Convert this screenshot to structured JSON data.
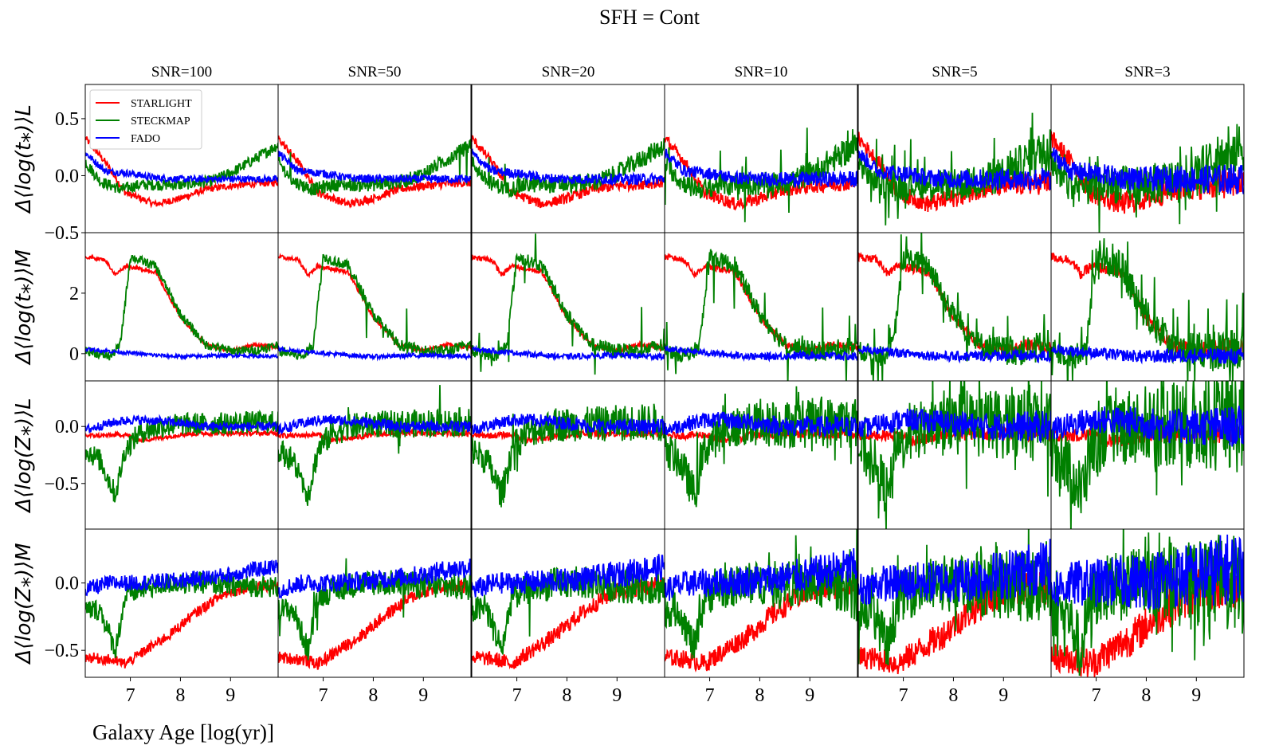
{
  "figure": {
    "title": "SFH = Cont",
    "xlabel": "Galaxy Age [log(yr)]"
  },
  "legend": {
    "items": [
      {
        "label": "STARLIGHT",
        "color": "#ff0000"
      },
      {
        "label": "STECKMAP",
        "color": "#008000"
      },
      {
        "label": "FADO",
        "color": "#0000ff"
      }
    ]
  },
  "chart_data": {
    "type": "line",
    "layout": "grid 4 rows x 6 columns, shared axes",
    "columns": [
      "SNR=100",
      "SNR=50",
      "SNR=20",
      "SNR=10",
      "SNR=5",
      "SNR=3"
    ],
    "noise_level": [
      0.0,
      0.2,
      0.5,
      1.0,
      1.8,
      2.6
    ],
    "xlim": [
      6.1,
      9.95
    ],
    "xticks": [
      7,
      8,
      9
    ],
    "xtick_labels": [
      "7",
      "8",
      "9"
    ],
    "rows": [
      {
        "ylabel": "Δ⟨log(t⁎)⟩L",
        "ylim": [
          -0.5,
          0.8
        ],
        "yticks": [
          -0.5,
          0.0,
          0.5
        ],
        "ytick_labels": [
          "−0.5",
          "0.0",
          "0.5"
        ],
        "series": [
          {
            "name": "STARLIGHT",
            "color": "#ff0000",
            "x": [
              6.1,
              6.5,
              6.9,
              7.5,
              8.0,
              8.5,
              9.0,
              9.5,
              9.95
            ],
            "y": [
              0.33,
              0.12,
              -0.15,
              -0.25,
              -0.2,
              -0.12,
              -0.09,
              -0.07,
              -0.06
            ],
            "noise": 0.03
          },
          {
            "name": "STECKMAP",
            "color": "#008000",
            "x": [
              6.1,
              6.4,
              6.8,
              7.2,
              8.0,
              8.6,
              9.0,
              9.5,
              9.95
            ],
            "y": [
              0.12,
              -0.05,
              -0.12,
              -0.08,
              -0.08,
              -0.05,
              0.02,
              0.15,
              0.27
            ],
            "noise": 0.05
          },
          {
            "name": "FADO",
            "color": "#0000ff",
            "x": [
              6.1,
              6.5,
              7.0,
              7.5,
              8.0,
              9.0,
              9.95
            ],
            "y": [
              0.2,
              0.04,
              0.02,
              -0.02,
              -0.03,
              -0.03,
              -0.03
            ],
            "noise": 0.03
          }
        ]
      },
      {
        "ylabel": "Δ⟨log(t⁎)⟩M",
        "ylim": [
          -0.9,
          4.0
        ],
        "yticks": [
          0,
          2
        ],
        "ytick_labels": [
          "0",
          "2"
        ],
        "series": [
          {
            "name": "STARLIGHT",
            "color": "#ff0000",
            "x": [
              6.1,
              6.5,
              6.7,
              6.9,
              7.5,
              8.0,
              8.5,
              9.0,
              9.5,
              9.95
            ],
            "y": [
              3.2,
              3.1,
              2.6,
              2.9,
              2.7,
              1.2,
              0.3,
              0.1,
              0.3,
              0.2
            ],
            "noise": 0.06
          },
          {
            "name": "STECKMAP",
            "color": "#008000",
            "x": [
              6.1,
              6.6,
              6.8,
              7.0,
              7.5,
              8.0,
              8.5,
              9.0,
              9.5,
              9.95
            ],
            "y": [
              0.1,
              -0.1,
              0.3,
              3.2,
              2.9,
              1.3,
              0.3,
              0.1,
              0.1,
              0.3
            ],
            "noise": 0.15
          },
          {
            "name": "FADO",
            "color": "#0000ff",
            "x": [
              6.1,
              6.8,
              7.5,
              8.0,
              9.0,
              9.95
            ],
            "y": [
              0.15,
              0.05,
              -0.05,
              -0.1,
              -0.05,
              -0.1
            ],
            "noise": 0.06
          }
        ]
      },
      {
        "ylabel": "Δ⟨log(Z⁎)⟩L",
        "ylim": [
          -0.9,
          0.4
        ],
        "yticks": [
          -0.5,
          0.0
        ],
        "ytick_labels": [
          "−0.5",
          "0.0"
        ],
        "series": [
          {
            "name": "STARLIGHT",
            "color": "#ff0000",
            "x": [
              6.1,
              6.5,
              6.9,
              7.2,
              7.6,
              8.0,
              8.5,
              9.0,
              9.95
            ],
            "y": [
              -0.08,
              -0.08,
              -0.07,
              -0.12,
              -0.1,
              -0.07,
              -0.06,
              -0.06,
              -0.06
            ],
            "noise": 0.02
          },
          {
            "name": "STECKMAP",
            "color": "#008000",
            "x": [
              6.1,
              6.4,
              6.7,
              6.9,
              7.2,
              7.6,
              8.0,
              8.5,
              9.0,
              9.95
            ],
            "y": [
              -0.2,
              -0.3,
              -0.6,
              -0.2,
              -0.05,
              0.0,
              0.02,
              0.02,
              0.03,
              0.04
            ],
            "noise": 0.1
          },
          {
            "name": "FADO",
            "color": "#0000ff",
            "x": [
              6.1,
              6.6,
              7.0,
              7.5,
              8.0,
              8.5,
              9.0,
              9.95
            ],
            "y": [
              -0.03,
              0.03,
              0.06,
              0.05,
              0.03,
              0.0,
              0.0,
              0.0
            ],
            "noise": 0.04
          }
        ]
      },
      {
        "ylabel": "Δ⟨log(Z⁎)⟩M",
        "ylim": [
          -0.7,
          0.4
        ],
        "yticks": [
          -0.5,
          0.0
        ],
        "ytick_labels": [
          "−0.5",
          "0.0"
        ],
        "series": [
          {
            "name": "STARLIGHT",
            "color": "#ff0000",
            "x": [
              6.1,
              6.6,
              6.9,
              7.3,
              7.8,
              8.2,
              8.7,
              9.0,
              9.5,
              9.95
            ],
            "y": [
              -0.55,
              -0.57,
              -0.6,
              -0.5,
              -0.38,
              -0.25,
              -0.12,
              -0.06,
              -0.03,
              -0.02
            ],
            "noise": 0.04
          },
          {
            "name": "STECKMAP",
            "color": "#008000",
            "x": [
              6.1,
              6.4,
              6.7,
              6.9,
              7.2,
              7.8,
              8.5,
              9.0,
              9.95
            ],
            "y": [
              -0.2,
              -0.2,
              -0.5,
              -0.1,
              -0.05,
              0.0,
              0.0,
              -0.02,
              -0.03
            ],
            "noise": 0.08
          },
          {
            "name": "FADO",
            "color": "#0000ff",
            "x": [
              6.1,
              6.6,
              7.0,
              7.5,
              8.0,
              8.5,
              9.0,
              9.5,
              9.95
            ],
            "y": [
              -0.05,
              0.0,
              0.0,
              0.01,
              0.02,
              0.04,
              0.06,
              0.1,
              0.12
            ],
            "noise": 0.06
          }
        ]
      }
    ]
  }
}
